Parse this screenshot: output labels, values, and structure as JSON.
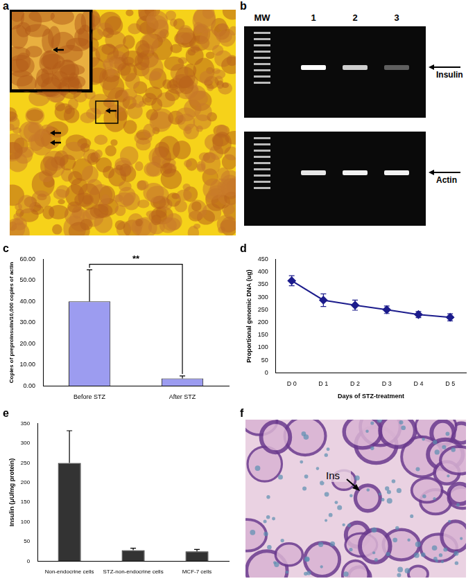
{
  "figure": {
    "panels": [
      "a",
      "b",
      "c",
      "d",
      "e",
      "f"
    ]
  },
  "gel": {
    "lanes": [
      "MW",
      "1",
      "2",
      "3"
    ],
    "bands": [
      "Insulin",
      "Actin"
    ]
  },
  "histology": {
    "label": "Ins"
  },
  "chart_data": [
    {
      "type": "bar",
      "categories": [
        "Before STZ",
        "After STZ"
      ],
      "values": [
        40,
        3.5
      ],
      "errors": [
        15,
        1.2
      ],
      "color": "#9c9cf0",
      "ylim": [
        0,
        60
      ],
      "yticks": [
        {
          "value": 0,
          "label": "0.00"
        },
        {
          "value": 10,
          "label": "10.00"
        },
        {
          "value": 20,
          "label": "20.00"
        },
        {
          "value": 30,
          "label": "30.00"
        },
        {
          "value": 40,
          "label": "40.00"
        },
        {
          "value": 50,
          "label": "50.00"
        },
        {
          "value": 60,
          "label": "60.00"
        }
      ],
      "ylabel": "Copies of preproinsulin/10,000 copies of actin",
      "annotation": "**",
      "grid": false
    },
    {
      "type": "line",
      "categories": [
        "D 0",
        "D 1",
        "D 2",
        "D 3",
        "D 4",
        "D 5"
      ],
      "values": [
        365,
        288,
        268,
        250,
        231,
        220
      ],
      "errors": [
        20,
        25,
        20,
        15,
        12,
        14
      ],
      "color": "#1c1c8c",
      "marker": "diamond",
      "line_style": "solid",
      "ylim": [
        0,
        450
      ],
      "yticks": [
        0,
        50,
        100,
        150,
        200,
        250,
        300,
        350,
        400,
        450
      ],
      "xlabel": "Days of STZ-treatment",
      "ylabel": "Proportional genomic DNA (ug)",
      "grid": false
    },
    {
      "type": "bar",
      "categories": [
        "Non-endocrine cells",
        "STZ-non-endocrine cells",
        "MCF-7 cells"
      ],
      "values": [
        250,
        28,
        25
      ],
      "errors": [
        82,
        5,
        5
      ],
      "color": "#333333",
      "ylim": [
        0,
        350
      ],
      "yticks": [
        0,
        50,
        100,
        150,
        200,
        250,
        300,
        350
      ],
      "ylabel": "Insulin (μU/mg protein)",
      "grid": false
    }
  ]
}
